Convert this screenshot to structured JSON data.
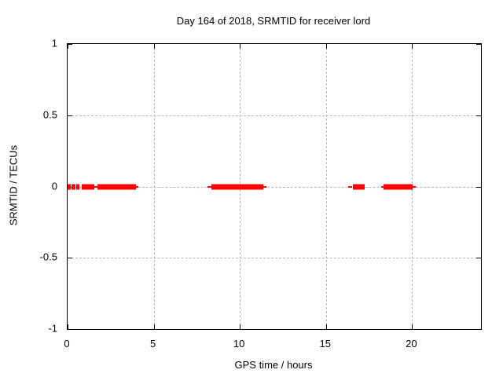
{
  "chart_data": {
    "type": "scatter",
    "title": "Day 164 of 2018, SRMTID for receiver lord",
    "xlabel": "GPS time / hours",
    "ylabel": "SRMTID / TECUs",
    "xlim": [
      0,
      24
    ],
    "ylim": [
      -1,
      1
    ],
    "xticks": [
      0,
      5,
      10,
      15,
      20
    ],
    "xtick_labels": [
      "0",
      "5",
      "10",
      "15",
      "20"
    ],
    "yticks": [
      -1,
      -0.5,
      0,
      0.5,
      1
    ],
    "ytick_labels": [
      "-1",
      "-0.5",
      "0",
      "0.5",
      "1"
    ],
    "grid": true,
    "grid_color": "#b8b8b8",
    "marker": "filled-square",
    "marker_color": "#ff0000",
    "series": [
      {
        "name": "SRMTID",
        "y_value": 0,
        "segments_hours": [
          {
            "start": 0.0,
            "end": 0.16,
            "thin": false
          },
          {
            "start": 0.25,
            "end": 0.45,
            "thin": false
          },
          {
            "start": 0.5,
            "end": 0.7,
            "thin": false
          },
          {
            "start": 0.82,
            "end": 1.55,
            "thin": false
          },
          {
            "start": 1.55,
            "end": 1.73,
            "thin": true
          },
          {
            "start": 1.73,
            "end": 3.95,
            "thin": false
          },
          {
            "start": 3.95,
            "end": 4.1,
            "thin": true
          },
          {
            "start": 8.1,
            "end": 8.35,
            "thin": true
          },
          {
            "start": 8.35,
            "end": 11.35,
            "thin": false
          },
          {
            "start": 11.35,
            "end": 11.55,
            "thin": true
          },
          {
            "start": 16.3,
            "end": 16.5,
            "thin": true
          },
          {
            "start": 16.55,
            "end": 17.25,
            "thin": false
          },
          {
            "start": 18.2,
            "end": 18.35,
            "thin": true
          },
          {
            "start": 18.35,
            "end": 20.05,
            "thin": false
          },
          {
            "start": 20.05,
            "end": 20.2,
            "thin": true
          }
        ]
      }
    ]
  }
}
